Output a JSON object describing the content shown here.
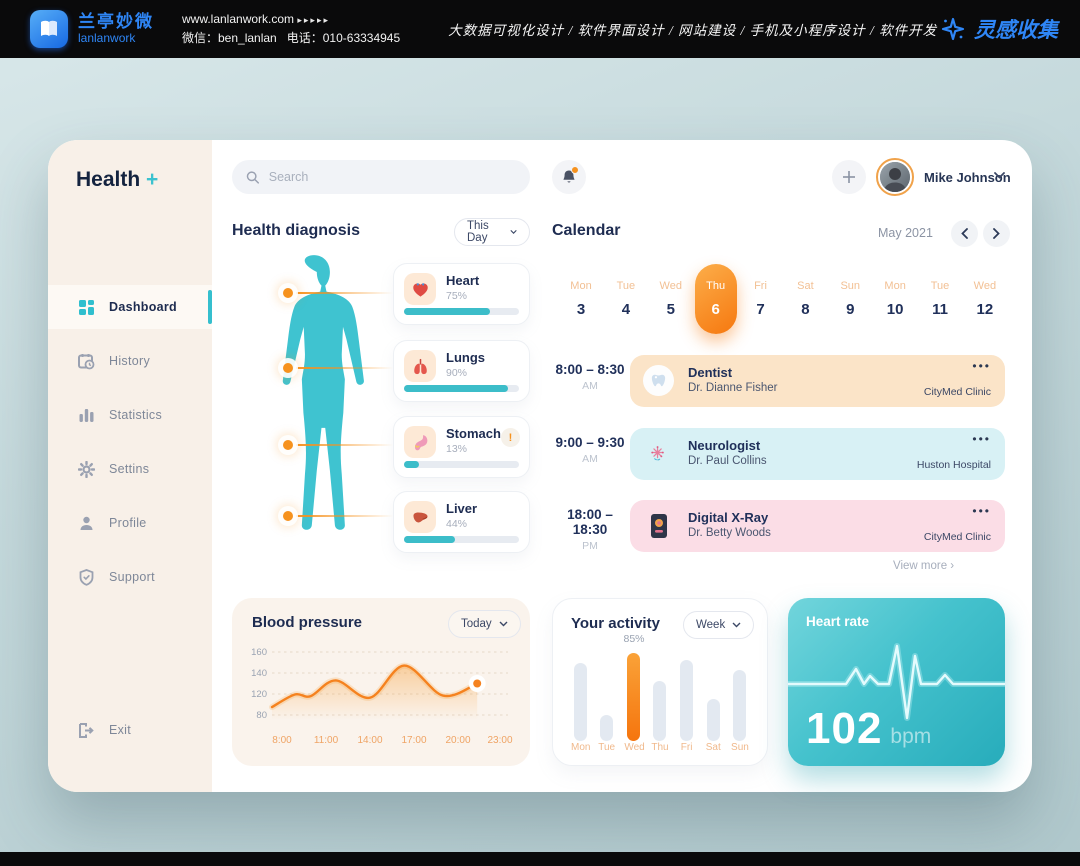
{
  "topbar": {
    "brand_cn": "兰亭妙微",
    "brand_en": "lanlanwork",
    "website": "www.lanlanwork.com",
    "website_arrows": "▸▸▸▸▸",
    "wechat": "微信：ben_lanlan",
    "phone": "电话：010-63334945",
    "services": "大数据可视化设计  /  软件界面设计  /  网站建设  /  手机及小程序设计  /  软件开发",
    "collect": "灵感收集"
  },
  "app": {
    "logo_text": "Health",
    "logo_plus": "+"
  },
  "sidebar": {
    "items": [
      {
        "label": "Dashboard",
        "icon": "grid-icon",
        "active": true
      },
      {
        "label": "History",
        "icon": "history-icon",
        "active": false
      },
      {
        "label": "Statistics",
        "icon": "bar-chart-icon",
        "active": false
      },
      {
        "label": "Settins",
        "icon": "gear-icon",
        "active": false
      },
      {
        "label": "Profile",
        "icon": "user-icon",
        "active": false
      },
      {
        "label": "Support",
        "icon": "shield-icon",
        "active": false
      }
    ],
    "exit_label": "Exit"
  },
  "header": {
    "search_placeholder": "Search",
    "user_name": "Mike Johnson"
  },
  "diagnosis": {
    "title": "Health diagnosis",
    "filter_label": "This Day",
    "organs": [
      {
        "name": "Heart",
        "percent": 75,
        "percent_label": "75%",
        "icon": "heart-icon"
      },
      {
        "name": "Lungs",
        "percent": 90,
        "percent_label": "90%",
        "icon": "lungs-icon"
      },
      {
        "name": "Stomach",
        "percent": 13,
        "percent_label": "13%",
        "icon": "stomach-icon",
        "alert": "!"
      },
      {
        "name": "Liver",
        "percent": 44,
        "percent_label": "44%",
        "icon": "liver-icon"
      }
    ]
  },
  "calendar": {
    "title": "Calendar",
    "month_label": "May 2021",
    "days": [
      {
        "dow": "Mon",
        "date": "3"
      },
      {
        "dow": "Tue",
        "date": "4"
      },
      {
        "dow": "Wed",
        "date": "5"
      },
      {
        "dow": "Thu",
        "date": "6",
        "active": true
      },
      {
        "dow": "Fri",
        "date": "7"
      },
      {
        "dow": "Sat",
        "date": "8"
      },
      {
        "dow": "Sun",
        "date": "9"
      },
      {
        "dow": "Mon",
        "date": "10"
      },
      {
        "dow": "Tue",
        "date": "11"
      },
      {
        "dow": "Wed",
        "date": "12"
      }
    ],
    "appointments": [
      {
        "time": "8:00 – 8:30",
        "meridiem": "AM",
        "title": "Dentist",
        "doctor": "Dr. Dianne Fisher",
        "place": "CityMed Clinic",
        "icon": "tooth-icon",
        "theme": "peach",
        "menu": "•••"
      },
      {
        "time": "9:00 – 9:30",
        "meridiem": "AM",
        "title": "Neurologist",
        "doctor": "Dr. Paul Collins",
        "place": "Huston Hospital",
        "icon": "neuron-icon",
        "theme": "cyan",
        "menu": "•••"
      },
      {
        "time": "18:00 – 18:30",
        "meridiem": "PM",
        "title": "Digital X-Ray",
        "doctor": "Dr. Betty Woods",
        "place": "CityMed Clinic",
        "icon": "xray-icon",
        "theme": "pink",
        "menu": "•••"
      }
    ],
    "view_more": "View more  ›"
  },
  "chart_data": [
    {
      "type": "line",
      "title": "Blood pressure",
      "filter_label": "Today",
      "x": [
        "8:00",
        "11:00",
        "14:00",
        "17:00",
        "20:00",
        "23:00"
      ],
      "values": [
        119,
        133,
        113,
        147,
        117,
        130
      ],
      "yticks": [
        "160",
        "140",
        "120",
        "80"
      ],
      "ylim": [
        80,
        160
      ],
      "current_value": 130,
      "shape_points": [
        [
          0,
          95
        ],
        [
          0.1,
          119
        ],
        [
          0.17,
          116
        ],
        [
          0.28,
          133
        ],
        [
          0.43,
          113
        ],
        [
          0.58,
          147
        ],
        [
          0.75,
          117
        ],
        [
          0.9,
          130
        ]
      ],
      "line_color": "#f5821f",
      "grid": true,
      "legend": false
    },
    {
      "type": "bar",
      "title": "Your activity",
      "filter_label": "Week",
      "categories": [
        "Mon",
        "Tue",
        "Wed",
        "Thu",
        "Fri",
        "Sat",
        "Sun"
      ],
      "values": [
        75,
        25,
        85,
        58,
        78,
        40,
        68
      ],
      "highlight_index": 2,
      "highlight_label": "85%",
      "bar_color": "#e3e9f1",
      "highlight_color": "#f5821f",
      "ylim": [
        0,
        100
      ]
    },
    {
      "type": "stat",
      "title": "Heart rate",
      "value": "102",
      "unit": "bpm"
    }
  ],
  "colors": {
    "teal": "#3cbdc9",
    "orange": "#f5821f",
    "navy": "#1e2c51",
    "topbar_blue": "#2f86f6"
  }
}
